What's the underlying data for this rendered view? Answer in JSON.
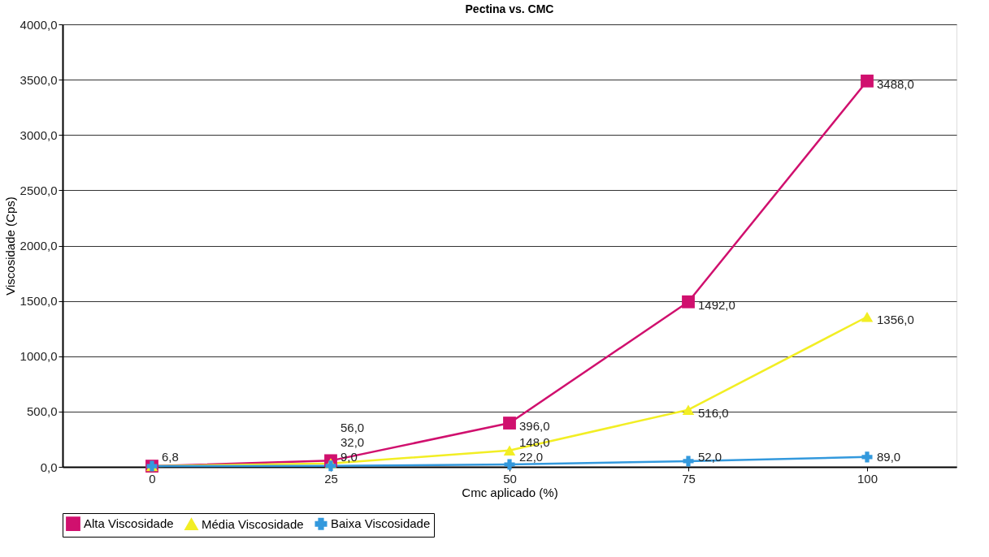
{
  "chart_data": {
    "type": "line",
    "title": "Pectina vs. CMC",
    "xlabel": "Cmc aplicado (%)",
    "ylabel": "Viscosidade (Cps)",
    "categories": [
      "0",
      "25",
      "50",
      "75",
      "100"
    ],
    "ylim": [
      0,
      4000
    ],
    "yticks": [
      {
        "value": 0,
        "label": "0,0"
      },
      {
        "value": 500,
        "label": "500,0"
      },
      {
        "value": 1000,
        "label": "1000,0"
      },
      {
        "value": 1500,
        "label": "1500,0"
      },
      {
        "value": 2000,
        "label": "2000,0"
      },
      {
        "value": 2500,
        "label": "2500,0"
      },
      {
        "value": 3000,
        "label": "3000,0"
      },
      {
        "value": 3500,
        "label": "3500,0"
      },
      {
        "value": 4000,
        "label": "4000,0"
      }
    ],
    "grid": "y",
    "legend": "bottom",
    "series": [
      {
        "name": "Alta Viscosidade",
        "color": "#d0106e",
        "marker": "square",
        "values": [
          6.8,
          56,
          396,
          1492,
          3488
        ],
        "value_labels": [
          null,
          "56,0",
          "396,0",
          "1492,0",
          "3488,0"
        ]
      },
      {
        "name": "Média Viscosidade",
        "color": "#f2ee24",
        "marker": "triangle",
        "values": [
          6.8,
          32,
          148,
          516,
          1356
        ],
        "value_labels": [
          null,
          "32,0",
          "148,0",
          "516,0",
          "1356,0"
        ]
      },
      {
        "name": "Baixa Viscosidade",
        "color": "#3399dd",
        "marker": "cross",
        "values": [
          6.8,
          9,
          22,
          52,
          89
        ],
        "value_labels": [
          "6,8",
          "9,0",
          "22,0",
          "52,0",
          "89,0"
        ]
      }
    ]
  }
}
